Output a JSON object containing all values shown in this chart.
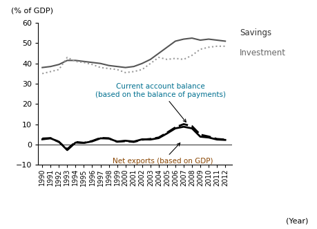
{
  "years": [
    1990,
    1991,
    1992,
    1993,
    1994,
    1995,
    1996,
    1997,
    1998,
    1999,
    2000,
    2001,
    2002,
    2003,
    2004,
    2005,
    2006,
    2007,
    2008,
    2009,
    2010,
    2011,
    2012
  ],
  "savings": [
    38.0,
    38.5,
    39.5,
    41.5,
    41.5,
    41.0,
    40.5,
    40.0,
    39.0,
    38.5,
    38.0,
    38.5,
    40.0,
    42.0,
    45.0,
    48.0,
    51.0,
    52.0,
    52.5,
    51.5,
    52.0,
    51.5,
    51.0
  ],
  "investment": [
    35.0,
    36.0,
    37.0,
    43.0,
    41.0,
    40.5,
    39.5,
    38.0,
    37.5,
    37.0,
    35.5,
    36.0,
    37.0,
    40.0,
    43.0,
    42.0,
    42.5,
    42.0,
    44.0,
    47.0,
    48.0,
    48.5,
    48.5
  ],
  "current_account": [
    3.0,
    3.2,
    1.3,
    -2.2,
    1.3,
    0.9,
    1.8,
    3.3,
    3.1,
    1.4,
    1.7,
    1.3,
    2.4,
    2.8,
    3.5,
    5.9,
    8.5,
    10.1,
    9.1,
    4.9,
    4.0,
    2.8,
    2.5
  ],
  "net_exports": [
    2.6,
    3.1,
    1.4,
    -2.7,
    1.0,
    0.8,
    1.6,
    3.1,
    3.0,
    1.5,
    1.9,
    1.5,
    2.6,
    2.5,
    3.2,
    5.5,
    8.0,
    8.8,
    8.0,
    3.9,
    3.5,
    2.5,
    2.3
  ],
  "ylim": [
    -10,
    60
  ],
  "yticks": [
    -10,
    0,
    10,
    20,
    30,
    40,
    50,
    60
  ],
  "savings_color": "#555555",
  "investment_color": "#999999",
  "savings_label": "Savings",
  "investment_label": "Investment",
  "cab_text": "Current account balance\n(based on the balance of payments)",
  "net_text": "Net exports (based on GDP)",
  "cab_text_color": "#007090",
  "net_text_color": "#884400",
  "ylabel": "(% of GDP)",
  "xlabel": "(Year)"
}
